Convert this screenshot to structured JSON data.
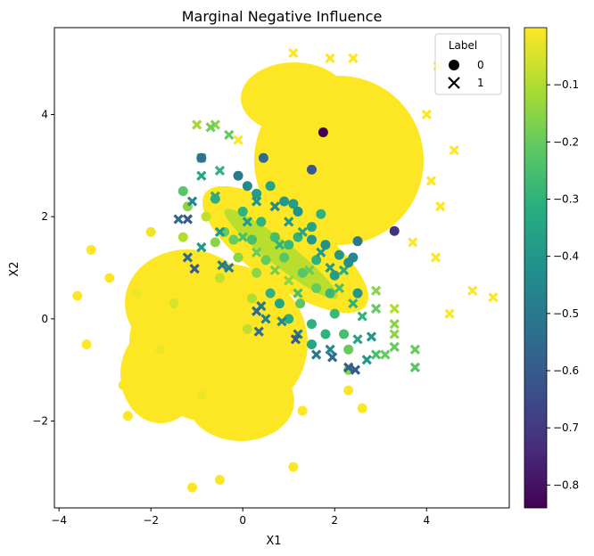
{
  "chart_data": {
    "type": "scatter",
    "title": "Marginal Negative Influence",
    "xlabel": "X1",
    "ylabel": "X2",
    "xlim": [
      -4.1,
      5.8
    ],
    "ylim": [
      -3.7,
      5.7
    ],
    "x_ticks": [
      -4,
      -2,
      0,
      2,
      4
    ],
    "y_ticks": [
      -2,
      0,
      2,
      4
    ],
    "grid": false,
    "legend": {
      "title": "Label",
      "placement": "top-right",
      "entries": [
        {
          "label": "0",
          "marker": "circle"
        },
        {
          "label": "1",
          "marker": "x"
        }
      ]
    },
    "colorbar": {
      "colormap": "viridis",
      "range": [
        -0.84,
        0.0
      ],
      "ticks": [
        -0.1,
        -0.2,
        -0.3,
        -0.4,
        -0.5,
        -0.6,
        -0.7,
        -0.8
      ],
      "tick_labels": [
        "−0.1",
        "−0.2",
        "−0.3",
        "−0.4",
        "−0.5",
        "−0.6",
        "−0.7",
        "−0.8"
      ]
    },
    "series": [
      {
        "name": "0",
        "marker": "circle",
        "points": [
          {
            "x": -3.6,
            "y": 0.45,
            "v": 0.0
          },
          {
            "x": -3.4,
            "y": -0.5,
            "v": 0.0
          },
          {
            "x": -3.3,
            "y": 1.35,
            "v": 0.0
          },
          {
            "x": -2.9,
            "y": 0.8,
            "v": 0.0
          },
          {
            "x": -2.6,
            "y": -1.3,
            "v": 0.0
          },
          {
            "x": -2.5,
            "y": -1.9,
            "v": 0.0
          },
          {
            "x": -2.0,
            "y": -1.9,
            "v": 0.0
          },
          {
            "x": -1.1,
            "y": -3.3,
            "v": 0.0
          },
          {
            "x": -0.5,
            "y": -3.15,
            "v": 0.0
          },
          {
            "x": 1.1,
            "y": -2.9,
            "v": 0.0
          },
          {
            "x": 2.3,
            "y": -1.4,
            "v": 0.0
          },
          {
            "x": 2.6,
            "y": -1.75,
            "v": 0.0
          },
          {
            "x": 1.75,
            "y": 3.65,
            "v": -0.84
          },
          {
            "x": 3.3,
            "y": 1.72,
            "v": -0.72
          },
          {
            "x": 1.5,
            "y": 2.92,
            "v": -0.6
          },
          {
            "x": -0.9,
            "y": 3.15,
            "v": -0.52
          },
          {
            "x": 0.45,
            "y": 3.15,
            "v": -0.55
          },
          {
            "x": -0.1,
            "y": 2.8,
            "v": -0.5
          },
          {
            "x": 0.1,
            "y": 2.6,
            "v": -0.45
          },
          {
            "x": 2.5,
            "y": 1.52,
            "v": -0.5
          },
          {
            "x": 2.4,
            "y": 1.2,
            "v": -0.45
          },
          {
            "x": 2.3,
            "y": 1.1,
            "v": -0.42
          },
          {
            "x": 2.5,
            "y": 0.5,
            "v": -0.4
          },
          {
            "x": 1.2,
            "y": 2.1,
            "v": -0.42
          },
          {
            "x": 1.1,
            "y": 2.25,
            "v": -0.38
          },
          {
            "x": 1.7,
            "y": 2.05,
            "v": -0.3
          },
          {
            "x": 0.9,
            "y": 2.3,
            "v": -0.4
          },
          {
            "x": 0.6,
            "y": 2.6,
            "v": -0.35
          },
          {
            "x": 0.3,
            "y": 2.45,
            "v": -0.38
          },
          {
            "x": 0.0,
            "y": 2.1,
            "v": -0.3
          },
          {
            "x": -0.6,
            "y": 2.35,
            "v": -0.3
          },
          {
            "x": -1.3,
            "y": 2.5,
            "v": -0.22
          },
          {
            "x": 1.5,
            "y": 1.55,
            "v": -0.4
          },
          {
            "x": 1.8,
            "y": 1.45,
            "v": -0.42
          },
          {
            "x": 2.1,
            "y": 1.25,
            "v": -0.4
          },
          {
            "x": 2.0,
            "y": 0.85,
            "v": -0.38
          },
          {
            "x": 1.5,
            "y": 1.8,
            "v": -0.35
          },
          {
            "x": 1.2,
            "y": 1.6,
            "v": -0.3
          },
          {
            "x": 1.0,
            "y": 1.45,
            "v": -0.28
          },
          {
            "x": 0.9,
            "y": 1.2,
            "v": -0.22
          },
          {
            "x": 0.7,
            "y": 1.6,
            "v": -0.26
          },
          {
            "x": 0.4,
            "y": 1.9,
            "v": -0.3
          },
          {
            "x": 0.2,
            "y": 1.55,
            "v": -0.25
          },
          {
            "x": 0.5,
            "y": 1.15,
            "v": -0.2
          },
          {
            "x": 1.3,
            "y": 0.9,
            "v": -0.22
          },
          {
            "x": 1.6,
            "y": 1.15,
            "v": -0.3
          },
          {
            "x": 1.6,
            "y": 0.6,
            "v": -0.2
          },
          {
            "x": 1.9,
            "y": 0.5,
            "v": -0.28
          },
          {
            "x": 1.25,
            "y": 0.3,
            "v": -0.22
          },
          {
            "x": 0.6,
            "y": 0.5,
            "v": -0.3
          },
          {
            "x": 0.8,
            "y": 0.3,
            "v": -0.35
          },
          {
            "x": 1.0,
            "y": 0.0,
            "v": -0.32
          },
          {
            "x": 1.5,
            "y": -0.1,
            "v": -0.3
          },
          {
            "x": 1.5,
            "y": -0.5,
            "v": -0.35
          },
          {
            "x": 1.8,
            "y": -0.3,
            "v": -0.3
          },
          {
            "x": 2.2,
            "y": -0.3,
            "v": -0.25
          },
          {
            "x": 2.3,
            "y": -0.6,
            "v": -0.2
          },
          {
            "x": 2.3,
            "y": -1.0,
            "v": -0.15
          },
          {
            "x": 2.0,
            "y": 0.1,
            "v": -0.28
          },
          {
            "x": -0.2,
            "y": 1.55,
            "v": -0.2
          },
          {
            "x": -0.4,
            "y": 1.7,
            "v": -0.2
          },
          {
            "x": -0.6,
            "y": 1.5,
            "v": -0.15
          },
          {
            "x": -0.1,
            "y": 1.2,
            "v": -0.15
          },
          {
            "x": 0.3,
            "y": 0.9,
            "v": -0.15
          },
          {
            "x": -1.3,
            "y": 1.6,
            "v": -0.1
          },
          {
            "x": -1.2,
            "y": 2.2,
            "v": -0.15
          },
          {
            "x": 0.2,
            "y": 0.4,
            "v": -0.1
          },
          {
            "x": 0.1,
            "y": -0.2,
            "v": -0.08
          },
          {
            "x": -0.5,
            "y": 0.8,
            "v": -0.08
          },
          {
            "x": -1.5,
            "y": 0.3,
            "v": -0.05
          },
          {
            "x": -2.3,
            "y": 0.5,
            "v": -0.02
          },
          {
            "x": -1.8,
            "y": -0.6,
            "v": -0.02
          },
          {
            "x": -0.9,
            "y": -1.5,
            "v": -0.02
          },
          {
            "x": 0.4,
            "y": -1.8,
            "v": 0.0
          },
          {
            "x": 1.3,
            "y": -1.8,
            "v": 0.0
          },
          {
            "x": -2.0,
            "y": 1.7,
            "v": -0.02
          },
          {
            "x": -0.8,
            "y": 2.0,
            "v": -0.08
          }
        ]
      },
      {
        "name": "1",
        "marker": "x",
        "points": [
          {
            "x": 1.1,
            "y": 5.2,
            "v": 0.0
          },
          {
            "x": 1.9,
            "y": 5.1,
            "v": 0.0
          },
          {
            "x": 2.4,
            "y": 5.1,
            "v": 0.0
          },
          {
            "x": 4.25,
            "y": 4.95,
            "v": 0.0
          },
          {
            "x": 5.0,
            "y": 0.55,
            "v": 0.0
          },
          {
            "x": 5.45,
            "y": 0.42,
            "v": 0.0
          },
          {
            "x": 4.5,
            "y": 0.1,
            "v": 0.0
          },
          {
            "x": 4.0,
            "y": 4.0,
            "v": 0.0
          },
          {
            "x": 4.6,
            "y": 3.3,
            "v": 0.0
          },
          {
            "x": 4.3,
            "y": 2.2,
            "v": 0.0
          },
          {
            "x": 0.1,
            "y": 4.3,
            "v": 0.0
          },
          {
            "x": -0.1,
            "y": 3.5,
            "v": 0.0
          },
          {
            "x": -0.6,
            "y": 3.8,
            "v": -0.15
          },
          {
            "x": -1.0,
            "y": 3.8,
            "v": -0.12
          },
          {
            "x": -0.7,
            "y": 3.75,
            "v": -0.18
          },
          {
            "x": -0.3,
            "y": 3.6,
            "v": -0.2
          },
          {
            "x": -0.9,
            "y": 3.15,
            "v": -0.22
          },
          {
            "x": -0.5,
            "y": 2.9,
            "v": -0.3
          },
          {
            "x": -0.9,
            "y": 2.8,
            "v": -0.35
          },
          {
            "x": -0.6,
            "y": 2.4,
            "v": -0.32
          },
          {
            "x": -1.1,
            "y": 2.3,
            "v": -0.45
          },
          {
            "x": -1.4,
            "y": 1.95,
            "v": -0.55
          },
          {
            "x": -1.2,
            "y": 1.95,
            "v": -0.6
          },
          {
            "x": -0.9,
            "y": 1.4,
            "v": -0.4
          },
          {
            "x": -1.2,
            "y": 1.2,
            "v": -0.55
          },
          {
            "x": -1.05,
            "y": 0.98,
            "v": -0.6
          },
          {
            "x": -0.45,
            "y": 1.05,
            "v": -0.5
          },
          {
            "x": -0.3,
            "y": 1.0,
            "v": -0.48
          },
          {
            "x": -0.5,
            "y": 1.7,
            "v": -0.4
          },
          {
            "x": 0.3,
            "y": 0.15,
            "v": -0.55
          },
          {
            "x": 0.4,
            "y": 0.25,
            "v": -0.5
          },
          {
            "x": 0.5,
            "y": 0.0,
            "v": -0.48
          },
          {
            "x": 0.35,
            "y": -0.25,
            "v": -0.55
          },
          {
            "x": 0.85,
            "y": -0.05,
            "v": -0.45
          },
          {
            "x": 1.15,
            "y": -0.4,
            "v": -0.6
          },
          {
            "x": 1.2,
            "y": -0.3,
            "v": -0.5
          },
          {
            "x": 1.6,
            "y": -0.7,
            "v": -0.5
          },
          {
            "x": 1.9,
            "y": -0.6,
            "v": -0.45
          },
          {
            "x": 1.95,
            "y": -0.75,
            "v": -0.55
          },
          {
            "x": 2.3,
            "y": -0.95,
            "v": -0.58
          },
          {
            "x": 2.45,
            "y": -1.0,
            "v": -0.6
          },
          {
            "x": 2.7,
            "y": -0.8,
            "v": -0.4
          },
          {
            "x": 2.9,
            "y": -0.7,
            "v": -0.25
          },
          {
            "x": 3.1,
            "y": -0.7,
            "v": -0.2
          },
          {
            "x": 3.3,
            "y": -0.55,
            "v": -0.2
          },
          {
            "x": 3.75,
            "y": -0.6,
            "v": -0.2
          },
          {
            "x": 3.75,
            "y": -0.95,
            "v": -0.22
          },
          {
            "x": 3.3,
            "y": -0.3,
            "v": -0.15
          },
          {
            "x": 2.8,
            "y": -0.35,
            "v": -0.4
          },
          {
            "x": 2.5,
            "y": -0.4,
            "v": -0.35
          },
          {
            "x": 2.6,
            "y": 0.05,
            "v": -0.3
          },
          {
            "x": 2.9,
            "y": 0.2,
            "v": -0.2
          },
          {
            "x": 3.3,
            "y": 0.2,
            "v": -0.1
          },
          {
            "x": 3.3,
            "y": -0.1,
            "v": -0.15
          },
          {
            "x": 2.4,
            "y": 0.3,
            "v": -0.3
          },
          {
            "x": 2.1,
            "y": 0.6,
            "v": -0.25
          },
          {
            "x": 2.9,
            "y": 0.55,
            "v": -0.15
          },
          {
            "x": 1.0,
            "y": 1.9,
            "v": -0.4
          },
          {
            "x": 1.3,
            "y": 1.7,
            "v": -0.35
          },
          {
            "x": 0.7,
            "y": 2.2,
            "v": -0.45
          },
          {
            "x": 0.3,
            "y": 2.3,
            "v": -0.42
          },
          {
            "x": 0.1,
            "y": 1.9,
            "v": -0.38
          },
          {
            "x": 0.8,
            "y": 1.45,
            "v": -0.3
          },
          {
            "x": 1.7,
            "y": 1.3,
            "v": -0.4
          },
          {
            "x": 1.9,
            "y": 1.0,
            "v": -0.38
          },
          {
            "x": 2.2,
            "y": 0.95,
            "v": -0.32
          },
          {
            "x": 1.45,
            "y": 0.95,
            "v": -0.2
          },
          {
            "x": 1.0,
            "y": 0.75,
            "v": -0.15
          },
          {
            "x": 0.7,
            "y": 0.95,
            "v": -0.18
          },
          {
            "x": 1.2,
            "y": 0.5,
            "v": -0.25
          },
          {
            "x": 0.3,
            "y": 1.3,
            "v": -0.2
          },
          {
            "x": 0.0,
            "y": 1.6,
            "v": -0.25
          },
          {
            "x": 3.2,
            "y": 4.2,
            "v": 0.0
          },
          {
            "x": 2.5,
            "y": 4.0,
            "v": 0.0
          },
          {
            "x": 3.5,
            "y": 3.5,
            "v": 0.0
          },
          {
            "x": 3.0,
            "y": 3.0,
            "v": 0.0
          },
          {
            "x": 1.4,
            "y": 4.4,
            "v": 0.0
          },
          {
            "x": 0.8,
            "y": 3.8,
            "v": 0.0
          },
          {
            "x": 4.1,
            "y": 2.7,
            "v": 0.0
          },
          {
            "x": 3.7,
            "y": 1.5,
            "v": 0.0
          },
          {
            "x": 4.2,
            "y": 1.2,
            "v": 0.0
          }
        ]
      }
    ]
  }
}
